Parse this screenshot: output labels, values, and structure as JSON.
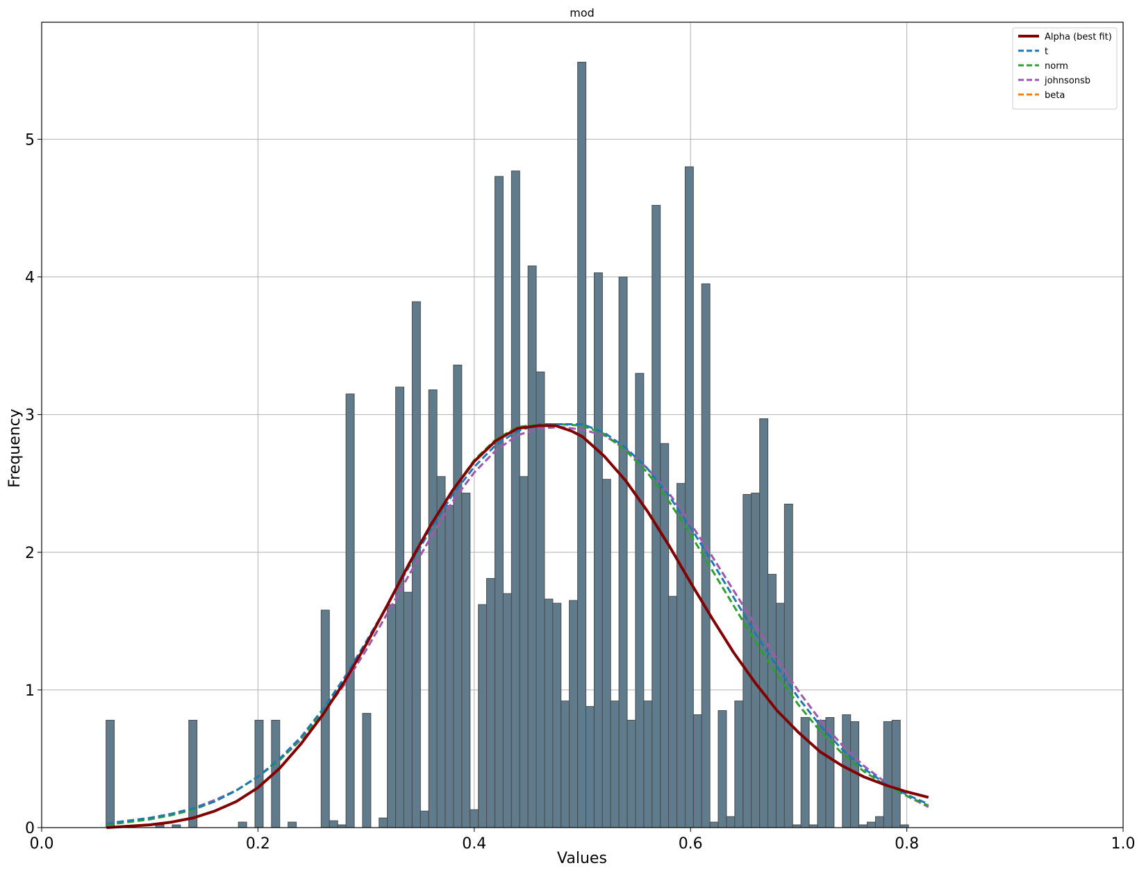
{
  "chart_data": {
    "type": "bar",
    "title": "mod",
    "xlabel": "Values",
    "ylabel": "Frequency",
    "xlim": [
      0.0,
      1.0
    ],
    "ylim": [
      0,
      5.85
    ],
    "xticks": [
      "0.0",
      "0.2",
      "0.4",
      "0.6",
      "0.8",
      "1.0"
    ],
    "yticks": [
      "0",
      "1",
      "2",
      "3",
      "4",
      "5"
    ],
    "grid": true,
    "legend_position": "top-right",
    "bar_color": "#607b8b",
    "bar_edge_color": "#4a4a4a",
    "histogram": {
      "bin_width": 0.00765,
      "bins": [
        {
          "x": 0.0595,
          "v": 0.78
        },
        {
          "x": 0.0672,
          "v": 0
        },
        {
          "x": 0.0748,
          "v": 0
        },
        {
          "x": 0.0825,
          "v": 0
        },
        {
          "x": 0.0901,
          "v": 0
        },
        {
          "x": 0.0978,
          "v": 0
        },
        {
          "x": 0.1054,
          "v": 0.02
        },
        {
          "x": 0.1131,
          "v": 0
        },
        {
          "x": 0.1207,
          "v": 0.02
        },
        {
          "x": 0.1284,
          "v": 0
        },
        {
          "x": 0.136,
          "v": 0.78
        },
        {
          "x": 0.1437,
          "v": 0
        },
        {
          "x": 0.1513,
          "v": 0
        },
        {
          "x": 0.159,
          "v": 0
        },
        {
          "x": 0.1666,
          "v": 0
        },
        {
          "x": 0.1743,
          "v": 0
        },
        {
          "x": 0.1819,
          "v": 0.04
        },
        {
          "x": 0.1896,
          "v": 0
        },
        {
          "x": 0.1972,
          "v": 0.78
        },
        {
          "x": 0.2049,
          "v": 0
        },
        {
          "x": 0.2125,
          "v": 0.78
        },
        {
          "x": 0.2202,
          "v": 0
        },
        {
          "x": 0.2278,
          "v": 0.04
        },
        {
          "x": 0.2355,
          "v": 0
        },
        {
          "x": 0.2431,
          "v": 0
        },
        {
          "x": 0.2508,
          "v": 0
        },
        {
          "x": 0.2584,
          "v": 1.58
        },
        {
          "x": 0.2661,
          "v": 0.05
        },
        {
          "x": 0.2737,
          "v": 0.02
        },
        {
          "x": 0.2814,
          "v": 3.15
        },
        {
          "x": 0.289,
          "v": 0
        },
        {
          "x": 0.2967,
          "v": 0.83
        },
        {
          "x": 0.3043,
          "v": 0
        },
        {
          "x": 0.312,
          "v": 0.07
        },
        {
          "x": 0.3196,
          "v": 1.62
        },
        {
          "x": 0.3273,
          "v": 3.2
        },
        {
          "x": 0.3349,
          "v": 1.71
        },
        {
          "x": 0.3426,
          "v": 3.82
        },
        {
          "x": 0.3502,
          "v": 0.12
        },
        {
          "x": 0.3579,
          "v": 3.18
        },
        {
          "x": 0.3655,
          "v": 2.55
        },
        {
          "x": 0.3732,
          "v": 2.34
        },
        {
          "x": 0.3808,
          "v": 3.36
        },
        {
          "x": 0.3885,
          "v": 2.43
        },
        {
          "x": 0.3961,
          "v": 0.13
        },
        {
          "x": 0.4038,
          "v": 1.62
        },
        {
          "x": 0.4114,
          "v": 1.81
        },
        {
          "x": 0.4191,
          "v": 4.73
        },
        {
          "x": 0.4267,
          "v": 1.7
        },
        {
          "x": 0.4344,
          "v": 4.77
        },
        {
          "x": 0.442,
          "v": 2.55
        },
        {
          "x": 0.4497,
          "v": 4.08
        },
        {
          "x": 0.4573,
          "v": 3.31
        },
        {
          "x": 0.465,
          "v": 1.66
        },
        {
          "x": 0.4726,
          "v": 1.63
        },
        {
          "x": 0.4803,
          "v": 0.92
        },
        {
          "x": 0.4879,
          "v": 1.65
        },
        {
          "x": 0.4956,
          "v": 5.56
        },
        {
          "x": 0.5032,
          "v": 0.88
        },
        {
          "x": 0.5109,
          "v": 4.03
        },
        {
          "x": 0.5185,
          "v": 2.53
        },
        {
          "x": 0.5262,
          "v": 0.92
        },
        {
          "x": 0.5338,
          "v": 4.0
        },
        {
          "x": 0.5415,
          "v": 0.78
        },
        {
          "x": 0.5491,
          "v": 3.3
        },
        {
          "x": 0.5568,
          "v": 0.92
        },
        {
          "x": 0.5644,
          "v": 4.52
        },
        {
          "x": 0.5721,
          "v": 2.79
        },
        {
          "x": 0.5797,
          "v": 1.68
        },
        {
          "x": 0.5874,
          "v": 2.5
        },
        {
          "x": 0.595,
          "v": 4.8
        },
        {
          "x": 0.6027,
          "v": 0.82
        },
        {
          "x": 0.6103,
          "v": 3.95
        },
        {
          "x": 0.618,
          "v": 0.04
        },
        {
          "x": 0.6256,
          "v": 0.85
        },
        {
          "x": 0.6333,
          "v": 0.08
        },
        {
          "x": 0.6409,
          "v": 0.92
        },
        {
          "x": 0.6486,
          "v": 2.42
        },
        {
          "x": 0.6562,
          "v": 2.43
        },
        {
          "x": 0.6639,
          "v": 2.97
        },
        {
          "x": 0.6715,
          "v": 1.84
        },
        {
          "x": 0.6792,
          "v": 1.63
        },
        {
          "x": 0.6868,
          "v": 2.35
        },
        {
          "x": 0.6945,
          "v": 0.02
        },
        {
          "x": 0.7021,
          "v": 0.8
        },
        {
          "x": 0.7098,
          "v": 0.02
        },
        {
          "x": 0.7174,
          "v": 0.78
        },
        {
          "x": 0.7251,
          "v": 0.8
        },
        {
          "x": 0.7327,
          "v": 0
        },
        {
          "x": 0.7404,
          "v": 0.82
        },
        {
          "x": 0.748,
          "v": 0.77
        },
        {
          "x": 0.7557,
          "v": 0.02
        },
        {
          "x": 0.7633,
          "v": 0.04
        },
        {
          "x": 0.771,
          "v": 0.08
        },
        {
          "x": 0.7786,
          "v": 0.77
        },
        {
          "x": 0.7863,
          "v": 0.78
        },
        {
          "x": 0.7939,
          "v": 0.02
        }
      ]
    },
    "series": [
      {
        "name": "Alpha (best fit)",
        "color": "#800000",
        "style": "solid",
        "x": [
          0.06,
          0.08,
          0.1,
          0.12,
          0.14,
          0.16,
          0.18,
          0.2,
          0.22,
          0.24,
          0.26,
          0.28,
          0.3,
          0.32,
          0.34,
          0.36,
          0.38,
          0.4,
          0.42,
          0.44,
          0.46,
          0.475,
          0.49,
          0.5,
          0.52,
          0.54,
          0.56,
          0.58,
          0.6,
          0.62,
          0.64,
          0.66,
          0.68,
          0.7,
          0.72,
          0.74,
          0.76,
          0.78,
          0.8,
          0.82
        ],
        "y": [
          0.0,
          0.01,
          0.02,
          0.04,
          0.07,
          0.12,
          0.19,
          0.29,
          0.43,
          0.61,
          0.82,
          1.06,
          1.33,
          1.62,
          1.92,
          2.2,
          2.45,
          2.66,
          2.81,
          2.9,
          2.92,
          2.92,
          2.88,
          2.84,
          2.7,
          2.52,
          2.3,
          2.05,
          1.78,
          1.52,
          1.27,
          1.05,
          0.85,
          0.69,
          0.55,
          0.45,
          0.37,
          0.31,
          0.26,
          0.22
        ]
      },
      {
        "name": "t",
        "color": "#1f77b4",
        "style": "dashed",
        "x": [
          0.06,
          0.08,
          0.1,
          0.12,
          0.14,
          0.16,
          0.18,
          0.2,
          0.22,
          0.24,
          0.26,
          0.28,
          0.3,
          0.32,
          0.34,
          0.36,
          0.38,
          0.4,
          0.42,
          0.44,
          0.46,
          0.48,
          0.5,
          0.52,
          0.54,
          0.56,
          0.58,
          0.6,
          0.62,
          0.64,
          0.66,
          0.68,
          0.7,
          0.72,
          0.74,
          0.76,
          0.78,
          0.8,
          0.82
        ],
        "y": [
          0.03,
          0.05,
          0.07,
          0.1,
          0.14,
          0.19,
          0.27,
          0.37,
          0.5,
          0.66,
          0.86,
          1.09,
          1.35,
          1.62,
          1.9,
          2.17,
          2.42,
          2.62,
          2.78,
          2.88,
          2.93,
          2.93,
          2.93,
          2.87,
          2.76,
          2.61,
          2.41,
          2.18,
          1.93,
          1.67,
          1.41,
          1.17,
          0.94,
          0.74,
          0.57,
          0.43,
          0.32,
          0.24,
          0.17
        ]
      },
      {
        "name": "norm",
        "color": "#2ca02c",
        "style": "dashed",
        "x": [
          0.06,
          0.08,
          0.1,
          0.12,
          0.14,
          0.16,
          0.18,
          0.2,
          0.22,
          0.24,
          0.26,
          0.28,
          0.3,
          0.32,
          0.34,
          0.36,
          0.38,
          0.4,
          0.42,
          0.44,
          0.46,
          0.48,
          0.5,
          0.52,
          0.54,
          0.56,
          0.58,
          0.6,
          0.62,
          0.64,
          0.66,
          0.68,
          0.7,
          0.72,
          0.74,
          0.76,
          0.78,
          0.8,
          0.82
        ],
        "y": [
          0.02,
          0.04,
          0.06,
          0.09,
          0.13,
          0.19,
          0.27,
          0.37,
          0.49,
          0.65,
          0.84,
          1.07,
          1.33,
          1.62,
          1.91,
          2.19,
          2.45,
          2.67,
          2.82,
          2.91,
          2.93,
          2.93,
          2.92,
          2.86,
          2.74,
          2.58,
          2.37,
          2.13,
          1.87,
          1.61,
          1.35,
          1.11,
          0.89,
          0.7,
          0.54,
          0.41,
          0.31,
          0.23,
          0.16
        ]
      },
      {
        "name": "johnsonsb",
        "color": "#9b59b6",
        "style": "dashed",
        "x": [
          0.06,
          0.08,
          0.1,
          0.12,
          0.14,
          0.16,
          0.18,
          0.2,
          0.22,
          0.24,
          0.26,
          0.28,
          0.3,
          0.32,
          0.34,
          0.36,
          0.38,
          0.4,
          0.42,
          0.44,
          0.46,
          0.48,
          0.5,
          0.52,
          0.54,
          0.56,
          0.58,
          0.6,
          0.62,
          0.64,
          0.66,
          0.68,
          0.7,
          0.72,
          0.74,
          0.76,
          0.78,
          0.8,
          0.82
        ],
        "y": [
          0.03,
          0.05,
          0.07,
          0.1,
          0.14,
          0.2,
          0.27,
          0.37,
          0.49,
          0.64,
          0.83,
          1.04,
          1.29,
          1.56,
          1.84,
          2.11,
          2.37,
          2.58,
          2.74,
          2.85,
          2.9,
          2.91,
          2.89,
          2.85,
          2.75,
          2.61,
          2.43,
          2.21,
          1.97,
          1.72,
          1.47,
          1.22,
          0.99,
          0.78,
          0.6,
          0.45,
          0.33,
          0.23,
          0.15
        ]
      },
      {
        "name": "beta",
        "color": "#ff7f0e",
        "style": "dashed",
        "x": [
          0.06,
          0.08,
          0.1,
          0.12,
          0.14,
          0.16,
          0.18,
          0.2,
          0.22,
          0.24,
          0.26,
          0.28,
          0.3,
          0.32,
          0.34,
          0.36,
          0.38,
          0.4,
          0.42,
          0.44,
          0.46,
          0.48,
          0.5,
          0.52,
          0.54,
          0.56,
          0.58,
          0.6,
          0.62,
          0.64,
          0.66,
          0.68,
          0.7,
          0.72,
          0.74,
          0.76,
          0.78,
          0.8,
          0.82
        ],
        "y": [
          0.03,
          0.05,
          0.07,
          0.1,
          0.14,
          0.2,
          0.27,
          0.37,
          0.49,
          0.64,
          0.83,
          1.04,
          1.29,
          1.56,
          1.84,
          2.11,
          2.37,
          2.58,
          2.74,
          2.85,
          2.9,
          2.91,
          2.89,
          2.85,
          2.75,
          2.61,
          2.43,
          2.21,
          1.97,
          1.72,
          1.47,
          1.22,
          0.99,
          0.78,
          0.6,
          0.45,
          0.33,
          0.23,
          0.15
        ]
      }
    ]
  }
}
